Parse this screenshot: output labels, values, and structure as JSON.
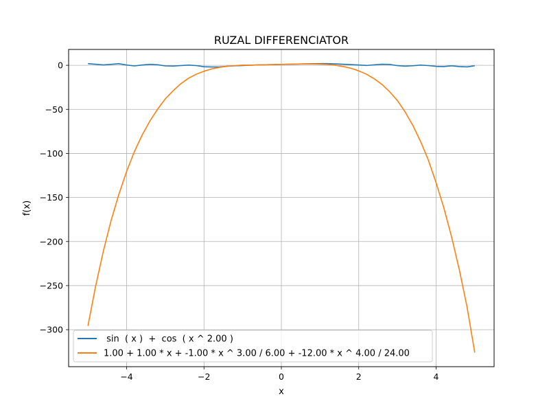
{
  "chart_data": {
    "type": "line",
    "title": "RUZAL DIFFERENCIATOR",
    "xlabel": "x",
    "ylabel": "f(x)",
    "xlim": [
      -5.5,
      5.5
    ],
    "ylim": [
      -342,
      18
    ],
    "x_ticks": [
      -4,
      -2,
      0,
      2,
      4
    ],
    "x_tick_labels": [
      "−4",
      "−2",
      "0",
      "2",
      "4"
    ],
    "y_ticks": [
      0,
      -50,
      -100,
      -150,
      -200,
      -250,
      -300
    ],
    "y_tick_labels": [
      "0",
      "−50",
      "−100",
      "−150",
      "−200",
      "−250",
      "−300"
    ],
    "grid": true,
    "legend": "lower-left",
    "series": [
      {
        "name": " sin  ( x )  +  cos  ( x ^ 2.00 )",
        "color": "#1f77b4",
        "x": [
          -5.0,
          -4.8,
          -4.6,
          -4.4,
          -4.2,
          -4.0,
          -3.8,
          -3.6,
          -3.4,
          -3.2,
          -3.0,
          -2.8,
          -2.6,
          -2.4,
          -2.2,
          -2.0,
          -1.8,
          -1.6,
          -1.4,
          -1.2,
          -1.0,
          -0.8,
          -0.6,
          -0.4,
          -0.2,
          0.0,
          0.2,
          0.4,
          0.6,
          0.8,
          1.0,
          1.2,
          1.4,
          1.6,
          1.8,
          2.0,
          2.2,
          2.4,
          2.6,
          2.8,
          3.0,
          3.2,
          3.4,
          3.6,
          3.8,
          4.0,
          4.2,
          4.4,
          4.6,
          4.8,
          5.0
        ],
        "y": [
          1.9,
          1.2,
          0.4,
          1.1,
          1.8,
          0.3,
          -0.7,
          0.3,
          1.1,
          0.6,
          -0.7,
          -0.9,
          -0.3,
          0.2,
          -0.3,
          -1.6,
          -1.9,
          -1.8,
          -1.1,
          -0.6,
          -0.3,
          0.1,
          0.4,
          0.6,
          0.8,
          1.0,
          1.2,
          1.4,
          1.6,
          1.8,
          1.9,
          1.9,
          1.6,
          1.2,
          0.8,
          0.3,
          -0.2,
          0.5,
          1.2,
          1.0,
          -0.4,
          -1.0,
          -0.5,
          0.2,
          -0.3,
          -1.2,
          -1.4,
          -0.6,
          -1.4,
          -1.8,
          -0.5
        ]
      },
      {
        "name": "1.00 + 1.00 * x + -1.00 * x ^ 3.00 / 6.00 + -12.00 * x ^ 4.00 / 24.00",
        "color": "#ff7f0e",
        "x": [
          -5.0,
          -4.8,
          -4.6,
          -4.4,
          -4.2,
          -4.0,
          -3.8,
          -3.6,
          -3.4,
          -3.2,
          -3.0,
          -2.8,
          -2.6,
          -2.4,
          -2.2,
          -2.0,
          -1.8,
          -1.6,
          -1.4,
          -1.2,
          -1.0,
          -0.8,
          -0.6,
          -0.4,
          -0.2,
          0.0,
          0.2,
          0.4,
          0.6,
          0.8,
          1.0,
          1.2,
          1.4,
          1.6,
          1.8,
          2.0,
          2.2,
          2.4,
          2.6,
          2.8,
          3.0,
          3.2,
          3.4,
          3.6,
          3.8,
          4.0,
          4.2,
          4.4,
          4.6,
          4.8,
          5.0
        ],
        "y": [
          -295.7,
          -250.2,
          -210.5,
          -175.8,
          -146.2,
          -120.3,
          -98.0,
          -79.2,
          -63.3,
          -49.8,
          -38.0,
          -28.9,
          -20.9,
          -14.7,
          -10.1,
          -6.7,
          -4.1,
          -2.3,
          -1.1,
          -0.4,
          0.2,
          0.1,
          0.4,
          0.6,
          0.8,
          1.0,
          1.2,
          1.4,
          1.5,
          1.5,
          1.3,
          0.9,
          0.0,
          -1.4,
          -3.4,
          -6.3,
          -10.1,
          -15.3,
          -21.7,
          -30.0,
          -40.0,
          -52.9,
          -68.3,
          -86.5,
          -107.5,
          -133.3,
          -161.6,
          -194.6,
          -231.9,
          -274.1,
          -326.0
        ]
      }
    ]
  }
}
